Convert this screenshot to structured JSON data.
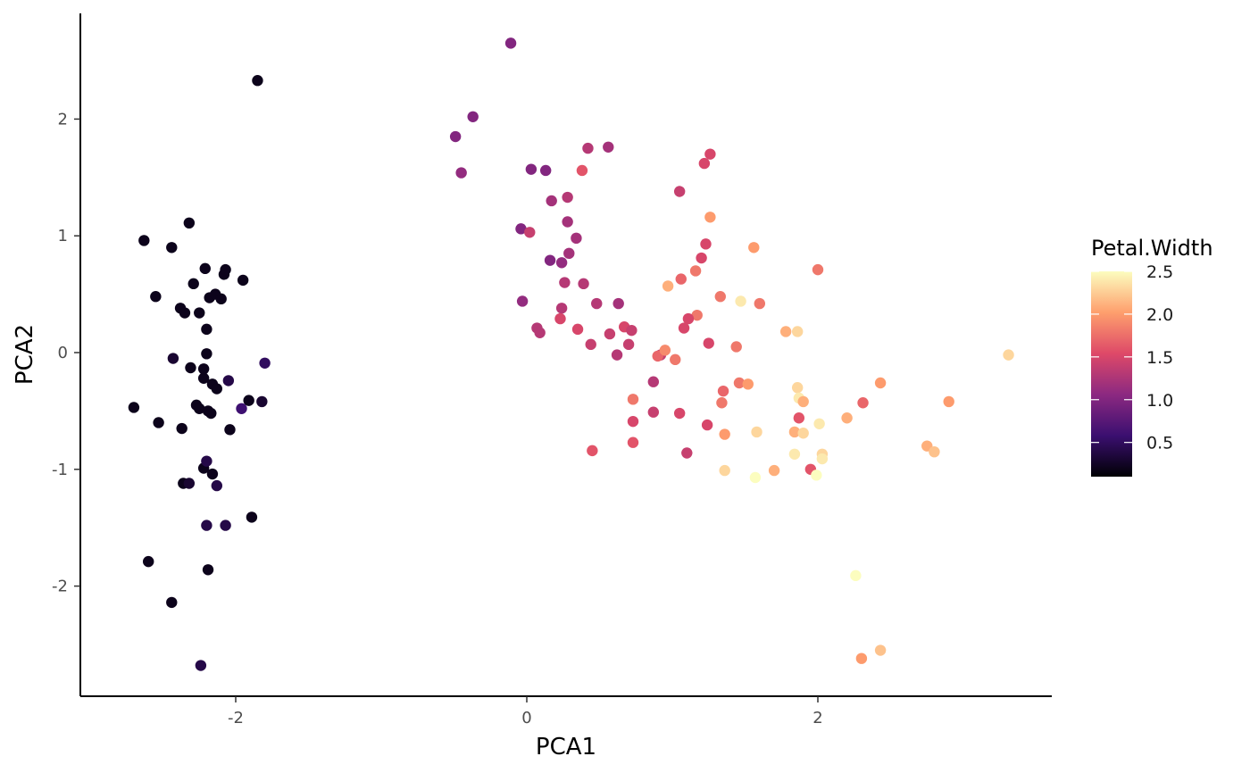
{
  "chart_data": {
    "type": "scatter",
    "title": "",
    "xlabel": "PCA1",
    "ylabel": "PCA2",
    "xlim": [
      -3.1,
      3.6
    ],
    "ylim": [
      -2.9,
      2.9
    ],
    "x_ticks": [
      -2,
      0,
      2
    ],
    "x_tick_labels": [
      "-2",
      "0",
      "2"
    ],
    "y_ticks": [
      -2,
      -1,
      0,
      1,
      2
    ],
    "y_tick_labels": [
      "-2",
      "-1",
      "0",
      "1",
      "2"
    ],
    "grid": false,
    "legend": {
      "title": "Petal.Width",
      "placement": "right",
      "type": "colorbar",
      "range": [
        0.1,
        2.5
      ],
      "ticks": [
        0.5,
        1.0,
        1.5,
        2.0,
        2.5
      ],
      "tick_labels": [
        "0.5",
        "1.0",
        "1.5",
        "2.0",
        "2.5"
      ]
    },
    "colorscale": {
      "name": "inferno",
      "stops": [
        "#000004",
        "#3b0f70",
        "#8c2981",
        "#de4968",
        "#fe9f6d",
        "#fcfdbf"
      ]
    },
    "colorscale_sample": [
      "#000004",
      "#420a68",
      "#932667",
      "#dd513a",
      "#fca50a",
      "#fcffa4"
    ],
    "points": [
      {
        "x": -2.7,
        "y": -0.47,
        "c": 0.2
      },
      {
        "x": -2.63,
        "y": 0.96,
        "c": 0.2
      },
      {
        "x": -2.6,
        "y": -1.79,
        "c": 0.2
      },
      {
        "x": -2.55,
        "y": 0.48,
        "c": 0.2
      },
      {
        "x": -2.53,
        "y": -0.6,
        "c": 0.2
      },
      {
        "x": -2.44,
        "y": 0.9,
        "c": 0.2
      },
      {
        "x": -2.44,
        "y": -2.14,
        "c": 0.2
      },
      {
        "x": -2.43,
        "y": -0.05,
        "c": 0.3
      },
      {
        "x": -2.38,
        "y": 0.38,
        "c": 0.2
      },
      {
        "x": -2.37,
        "y": -0.65,
        "c": 0.2
      },
      {
        "x": -2.36,
        "y": -1.12,
        "c": 0.2
      },
      {
        "x": -2.35,
        "y": 0.34,
        "c": 0.2
      },
      {
        "x": -2.32,
        "y": -1.12,
        "c": 0.3
      },
      {
        "x": -2.32,
        "y": 1.11,
        "c": 0.2
      },
      {
        "x": -2.31,
        "y": -0.13,
        "c": 0.2
      },
      {
        "x": -2.29,
        "y": 0.59,
        "c": 0.2
      },
      {
        "x": -2.27,
        "y": -0.45,
        "c": 0.2
      },
      {
        "x": -2.25,
        "y": -0.48,
        "c": 0.2
      },
      {
        "x": -2.25,
        "y": 0.34,
        "c": 0.2
      },
      {
        "x": -2.24,
        "y": -2.68,
        "c": 0.4
      },
      {
        "x": -2.22,
        "y": -0.99,
        "c": 0.2
      },
      {
        "x": -2.22,
        "y": -0.22,
        "c": 0.2
      },
      {
        "x": -2.22,
        "y": -0.14,
        "c": 0.2
      },
      {
        "x": -2.21,
        "y": 0.72,
        "c": 0.2
      },
      {
        "x": -2.2,
        "y": 0.2,
        "c": 0.2
      },
      {
        "x": -2.2,
        "y": -0.01,
        "c": 0.2
      },
      {
        "x": -2.2,
        "y": -0.93,
        "c": 0.4
      },
      {
        "x": -2.2,
        "y": -1.48,
        "c": 0.4
      },
      {
        "x": -2.19,
        "y": -1.86,
        "c": 0.2
      },
      {
        "x": -2.19,
        "y": -0.5,
        "c": 0.2
      },
      {
        "x": -2.18,
        "y": 0.47,
        "c": 0.2
      },
      {
        "x": -2.17,
        "y": -0.52,
        "c": 0.2
      },
      {
        "x": -2.16,
        "y": -1.04,
        "c": 0.2
      },
      {
        "x": -2.16,
        "y": -0.27,
        "c": 0.2
      },
      {
        "x": -2.14,
        "y": 0.5,
        "c": 0.2
      },
      {
        "x": -2.13,
        "y": -0.31,
        "c": 0.2
      },
      {
        "x": -2.13,
        "y": -1.14,
        "c": 0.4
      },
      {
        "x": -2.1,
        "y": 0.46,
        "c": 0.2
      },
      {
        "x": -2.08,
        "y": 0.67,
        "c": 0.2
      },
      {
        "x": -2.07,
        "y": 0.71,
        "c": 0.2
      },
      {
        "x": -2.07,
        "y": -1.48,
        "c": 0.4
      },
      {
        "x": -2.05,
        "y": -0.24,
        "c": 0.4
      },
      {
        "x": -2.04,
        "y": -0.66,
        "c": 0.2
      },
      {
        "x": -1.96,
        "y": -0.48,
        "c": 0.6
      },
      {
        "x": -1.95,
        "y": 0.62,
        "c": 0.2
      },
      {
        "x": -1.91,
        "y": -0.41,
        "c": 0.2
      },
      {
        "x": -1.89,
        "y": -1.41,
        "c": 0.2
      },
      {
        "x": -1.85,
        "y": 2.33,
        "c": 0.2
      },
      {
        "x": -1.82,
        "y": -0.42,
        "c": 0.3
      },
      {
        "x": -1.8,
        "y": -0.09,
        "c": 0.5
      },
      {
        "x": -0.11,
        "y": 2.65,
        "c": 1.0
      },
      {
        "x": -0.37,
        "y": 2.02,
        "c": 1.0
      },
      {
        "x": -0.49,
        "y": 1.85,
        "c": 1.0
      },
      {
        "x": -0.45,
        "y": 1.54,
        "c": 1.1
      },
      {
        "x": 0.03,
        "y": 1.57,
        "c": 1.0
      },
      {
        "x": 0.13,
        "y": 1.56,
        "c": 1.0
      },
      {
        "x": 0.38,
        "y": 1.56,
        "c": 1.6
      },
      {
        "x": 0.42,
        "y": 1.75,
        "c": 1.3
      },
      {
        "x": 0.56,
        "y": 1.76,
        "c": 1.2
      },
      {
        "x": 0.17,
        "y": 1.3,
        "c": 1.2
      },
      {
        "x": 0.28,
        "y": 1.33,
        "c": 1.3
      },
      {
        "x": 0.28,
        "y": 1.12,
        "c": 1.2
      },
      {
        "x": -0.04,
        "y": 1.06,
        "c": 1.0
      },
      {
        "x": 0.02,
        "y": 1.03,
        "c": 1.4
      },
      {
        "x": 0.34,
        "y": 0.98,
        "c": 1.2
      },
      {
        "x": 0.29,
        "y": 0.85,
        "c": 1.2
      },
      {
        "x": 0.16,
        "y": 0.79,
        "c": 1.0
      },
      {
        "x": 0.24,
        "y": 0.77,
        "c": 1.1
      },
      {
        "x": 0.26,
        "y": 0.6,
        "c": 1.3
      },
      {
        "x": 0.39,
        "y": 0.59,
        "c": 1.3
      },
      {
        "x": -0.03,
        "y": 0.44,
        "c": 1.1
      },
      {
        "x": 0.48,
        "y": 0.42,
        "c": 1.3
      },
      {
        "x": 0.63,
        "y": 0.42,
        "c": 1.2
      },
      {
        "x": 0.24,
        "y": 0.38,
        "c": 1.3
      },
      {
        "x": 0.23,
        "y": 0.29,
        "c": 1.5
      },
      {
        "x": 0.07,
        "y": 0.21,
        "c": 1.3
      },
      {
        "x": 0.09,
        "y": 0.17,
        "c": 1.3
      },
      {
        "x": 0.35,
        "y": 0.2,
        "c": 1.5
      },
      {
        "x": 0.57,
        "y": 0.16,
        "c": 1.4
      },
      {
        "x": 0.67,
        "y": 0.22,
        "c": 1.5
      },
      {
        "x": 0.72,
        "y": 0.19,
        "c": 1.4
      },
      {
        "x": 0.44,
        "y": 0.07,
        "c": 1.4
      },
      {
        "x": 0.7,
        "y": 0.07,
        "c": 1.4
      },
      {
        "x": 0.62,
        "y": -0.02,
        "c": 1.3
      },
      {
        "x": 0.92,
        "y": -0.02,
        "c": 1.4
      },
      {
        "x": 0.9,
        "y": -0.03,
        "c": 1.7
      },
      {
        "x": 0.95,
        "y": 0.02,
        "c": 1.9
      },
      {
        "x": 1.02,
        "y": -0.06,
        "c": 1.8
      },
      {
        "x": 0.87,
        "y": -0.25,
        "c": 1.3
      },
      {
        "x": 0.73,
        "y": -0.4,
        "c": 1.8
      },
      {
        "x": 0.87,
        "y": -0.51,
        "c": 1.4
      },
      {
        "x": 0.73,
        "y": -0.59,
        "c": 1.5
      },
      {
        "x": 0.73,
        "y": -0.77,
        "c": 1.6
      },
      {
        "x": 1.05,
        "y": -0.52,
        "c": 1.5
      },
      {
        "x": 0.45,
        "y": -0.84,
        "c": 1.6
      },
      {
        "x": 1.1,
        "y": -0.86,
        "c": 1.4
      },
      {
        "x": 1.05,
        "y": 1.38,
        "c": 1.4
      },
      {
        "x": 1.22,
        "y": 1.62,
        "c": 1.5
      },
      {
        "x": 1.26,
        "y": 1.7,
        "c": 1.5
      },
      {
        "x": 1.26,
        "y": 1.16,
        "c": 2.0
      },
      {
        "x": 1.23,
        "y": 0.93,
        "c": 1.5
      },
      {
        "x": 1.2,
        "y": 0.81,
        "c": 1.5
      },
      {
        "x": 1.56,
        "y": 0.9,
        "c": 2.0
      },
      {
        "x": 2.0,
        "y": 0.71,
        "c": 1.8
      },
      {
        "x": 1.16,
        "y": 0.7,
        "c": 1.8
      },
      {
        "x": 1.06,
        "y": 0.63,
        "c": 1.7
      },
      {
        "x": 0.97,
        "y": 0.57,
        "c": 2.1
      },
      {
        "x": 1.33,
        "y": 0.48,
        "c": 1.8
      },
      {
        "x": 1.47,
        "y": 0.44,
        "c": 2.4
      },
      {
        "x": 1.6,
        "y": 0.42,
        "c": 1.8
      },
      {
        "x": 1.17,
        "y": 0.32,
        "c": 1.8
      },
      {
        "x": 1.11,
        "y": 0.29,
        "c": 1.5
      },
      {
        "x": 1.08,
        "y": 0.21,
        "c": 1.5
      },
      {
        "x": 1.78,
        "y": 0.18,
        "c": 2.1
      },
      {
        "x": 1.86,
        "y": 0.18,
        "c": 2.3
      },
      {
        "x": 1.25,
        "y": 0.08,
        "c": 1.5
      },
      {
        "x": 1.44,
        "y": 0.05,
        "c": 1.8
      },
      {
        "x": 3.31,
        "y": -0.02,
        "c": 2.3
      },
      {
        "x": 1.46,
        "y": -0.26,
        "c": 1.8
      },
      {
        "x": 1.52,
        "y": -0.27,
        "c": 2.0
      },
      {
        "x": 1.35,
        "y": -0.33,
        "c": 1.7
      },
      {
        "x": 1.34,
        "y": -0.43,
        "c": 1.8
      },
      {
        "x": 1.86,
        "y": -0.3,
        "c": 2.3
      },
      {
        "x": 1.87,
        "y": -0.39,
        "c": 2.4
      },
      {
        "x": 1.9,
        "y": -0.42,
        "c": 2.1
      },
      {
        "x": 2.31,
        "y": -0.43,
        "c": 1.7
      },
      {
        "x": 2.43,
        "y": -0.26,
        "c": 2.0
      },
      {
        "x": 2.9,
        "y": -0.42,
        "c": 2.0
      },
      {
        "x": 1.87,
        "y": -0.56,
        "c": 1.6
      },
      {
        "x": 2.2,
        "y": -0.56,
        "c": 2.1
      },
      {
        "x": 2.01,
        "y": -0.61,
        "c": 2.4
      },
      {
        "x": 1.24,
        "y": -0.62,
        "c": 1.5
      },
      {
        "x": 1.58,
        "y": -0.68,
        "c": 2.3
      },
      {
        "x": 1.84,
        "y": -0.68,
        "c": 2.1
      },
      {
        "x": 1.9,
        "y": -0.69,
        "c": 2.3
      },
      {
        "x": 1.36,
        "y": -0.7,
        "c": 2.0
      },
      {
        "x": 2.75,
        "y": -0.8,
        "c": 2.1
      },
      {
        "x": 2.8,
        "y": -0.85,
        "c": 2.2
      },
      {
        "x": 1.84,
        "y": -0.87,
        "c": 2.4
      },
      {
        "x": 2.03,
        "y": -0.87,
        "c": 2.3
      },
      {
        "x": 2.03,
        "y": -0.91,
        "c": 2.4
      },
      {
        "x": 1.95,
        "y": -1.0,
        "c": 1.6
      },
      {
        "x": 1.36,
        "y": -1.01,
        "c": 2.3
      },
      {
        "x": 1.7,
        "y": -1.01,
        "c": 2.1
      },
      {
        "x": 1.99,
        "y": -1.05,
        "c": 2.5
      },
      {
        "x": 1.57,
        "y": -1.07,
        "c": 2.5
      },
      {
        "x": 2.26,
        "y": -1.91,
        "c": 2.5
      },
      {
        "x": 2.3,
        "y": -2.62,
        "c": 2.0
      },
      {
        "x": 2.43,
        "y": -2.55,
        "c": 2.2
      }
    ]
  }
}
